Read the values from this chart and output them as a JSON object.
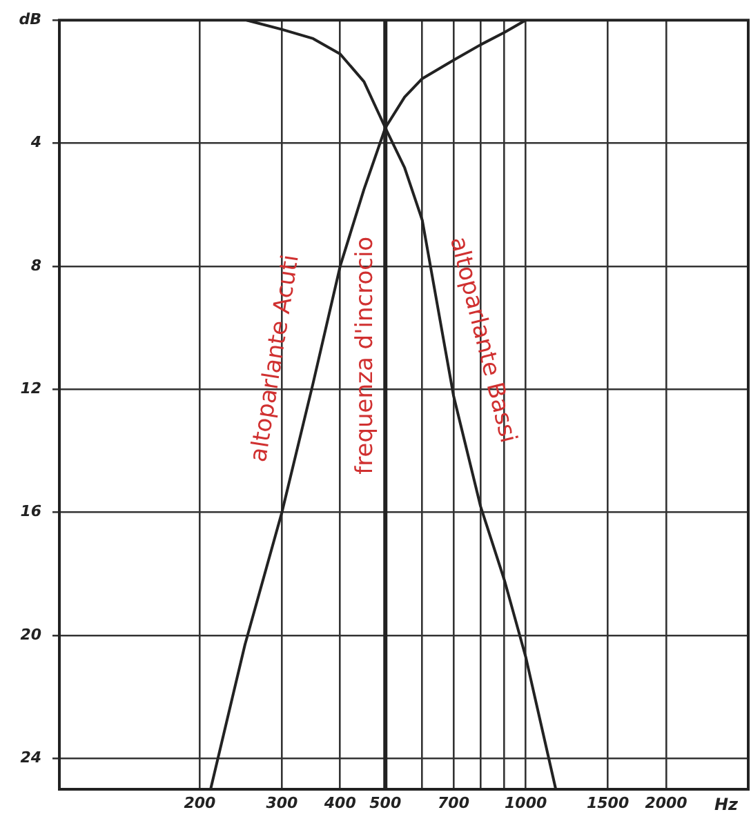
{
  "chart_data": {
    "type": "line",
    "xlabel": "Hz",
    "log": "x",
    "grid": true,
    "legend": false,
    "marker": "none",
    "line_style": "solid",
    "xlim": [
      100,
      3000
    ],
    "xticks": [
      200,
      300,
      400,
      500,
      {
        "value": 600,
        "label": null
      },
      700,
      {
        "value": 800,
        "label": null
      },
      {
        "value": 900,
        "label": null
      },
      1000,
      1500,
      2000
    ],
    "ylim": [
      25,
      0
    ],
    "yticks": [
      {
        "value": 0,
        "label": "dB"
      },
      4,
      8,
      12,
      16,
      20,
      24
    ],
    "series": [
      {
        "name": "altoparlante Acuti",
        "color": "#222222",
        "x": [
          211,
          250,
          300,
          350,
          400,
          450,
          500,
          550,
          600,
          700,
          800,
          900,
          1000
        ],
        "values": [
          25,
          20.3,
          16,
          11.8,
          8,
          5.5,
          3.5,
          2.5,
          1.9,
          1.3,
          0.8,
          0.4,
          0
        ]
      },
      {
        "name": "altoparlante Bassi",
        "color": "#222222",
        "x": [
          252,
          300,
          350,
          400,
          450,
          500,
          550,
          600,
          700,
          800,
          900,
          1000,
          1160
        ],
        "values": [
          0,
          0.3,
          0.6,
          1.1,
          2,
          3.5,
          4.8,
          6.5,
          12.2,
          15.8,
          18.2,
          20.7,
          25
        ]
      }
    ],
    "ref_lines": [
      {
        "axis": "x",
        "value": 500,
        "label": "frequenza d'incrocio",
        "color": "#222222"
      }
    ]
  }
}
